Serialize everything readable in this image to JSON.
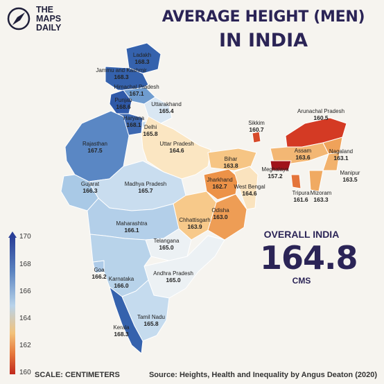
{
  "brand": {
    "name": "THE\nMAPS\nDAILY"
  },
  "title": {
    "line1": "AVERAGE HEIGHT (MEN)",
    "line2": "IN INDIA"
  },
  "overall": {
    "label": "OVERALL INDIA",
    "value": "164.8",
    "unit": "CMS"
  },
  "legend": {
    "ticks": [
      "170",
      "168",
      "166",
      "164",
      "162",
      "160"
    ],
    "min": 160,
    "max": 170
  },
  "scale_label": "SCALE: CENTIMETERS",
  "source": "Source: Heights, Health and Inequality by Angus Deaton (2020)",
  "states": [
    {
      "name": "Ladakh",
      "value": "168.3",
      "color": "#3562ad"
    },
    {
      "name": "Jammu and Kashmir",
      "value": "168.3",
      "color": "#3562ad"
    },
    {
      "name": "Himachal Pradesh",
      "value": "167.1",
      "color": "#6f9ccf"
    },
    {
      "name": "Punjab",
      "value": "168.6",
      "color": "#2f59a8"
    },
    {
      "name": "Uttarakhand",
      "value": "165.4",
      "color": "#d9e7f3"
    },
    {
      "name": "Haryana",
      "value": "168.1",
      "color": "#3d68b0"
    },
    {
      "name": "Delhi",
      "value": "165.8",
      "color": "#c5dbee"
    },
    {
      "name": "Rajasthan",
      "value": "167.5",
      "color": "#5a87c4"
    },
    {
      "name": "Uttar Pradesh",
      "value": "164.6",
      "color": "#fbe6c2"
    },
    {
      "name": "Bihar",
      "value": "163.8",
      "color": "#f6c584"
    },
    {
      "name": "Sikkim",
      "value": "160.7",
      "color": "#d64a2a"
    },
    {
      "name": "Arunachal Pradesh",
      "value": "160.5",
      "color": "#d43a24"
    },
    {
      "name": "Assam",
      "value": "163.6",
      "color": "#f3b774"
    },
    {
      "name": "Nagaland",
      "value": "163.1",
      "color": "#efa25a"
    },
    {
      "name": "Meghalaya",
      "value": "157.2",
      "color": "#a0121a"
    },
    {
      "name": "Manipur",
      "value": "163.5",
      "color": "#f2b26d"
    },
    {
      "name": "Tripura",
      "value": "161.6",
      "color": "#e4743a"
    },
    {
      "name": "Mizoram",
      "value": "163.3",
      "color": "#f0aa62"
    },
    {
      "name": "Gujarat",
      "value": "166.3",
      "color": "#a9c9e6"
    },
    {
      "name": "Madhya Pradesh",
      "value": "165.7",
      "color": "#c9ddef"
    },
    {
      "name": "Jharkhand",
      "value": "162.7",
      "color": "#ec9248"
    },
    {
      "name": "West Bengal",
      "value": "164.6",
      "color": "#fae3be"
    },
    {
      "name": "Chhattisgarh",
      "value": "163.9",
      "color": "#f7c98a"
    },
    {
      "name": "Odisha",
      "value": "163.0",
      "color": "#ee9d55"
    },
    {
      "name": "Maharashtra",
      "value": "166.1",
      "color": "#b3cfe9"
    },
    {
      "name": "Telangana",
      "value": "165.0",
      "color": "#ecf1f4"
    },
    {
      "name": "Goa",
      "value": "166.2",
      "color": "#aecbe8"
    },
    {
      "name": "Andhra Pradesh",
      "value": "165.0",
      "color": "#ecf1f4"
    },
    {
      "name": "Karnataka",
      "value": "166.0",
      "color": "#b8d3ea"
    },
    {
      "name": "Tamil Nadu",
      "value": "165.8",
      "color": "#c5dbee"
    },
    {
      "name": "Kerala",
      "value": "168.3",
      "color": "#3562ad"
    }
  ]
}
